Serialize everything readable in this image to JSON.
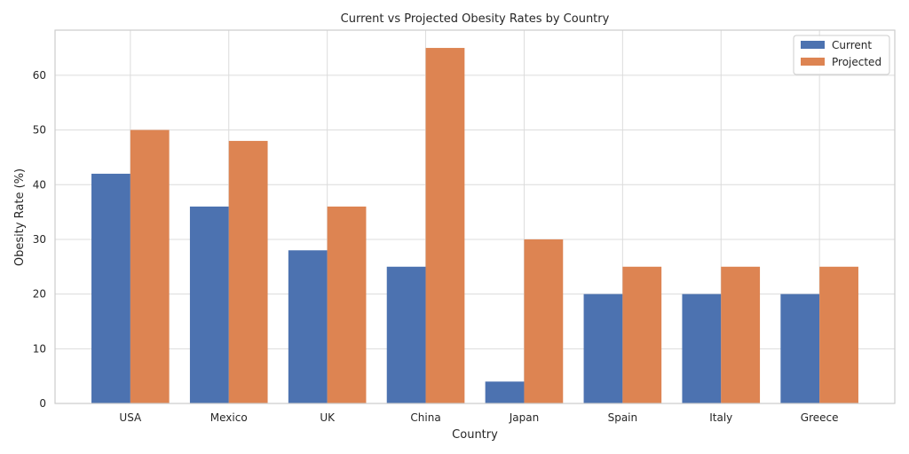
{
  "colors": {
    "current": "#4c72b0",
    "projected": "#dd8452",
    "grid": "#dcdcdc",
    "axis": "#cccccc"
  },
  "chart_data": {
    "type": "bar",
    "title": "Current vs Projected Obesity Rates by Country",
    "xlabel": "Country",
    "ylabel": "Obesity Rate (%)",
    "categories": [
      "USA",
      "Mexico",
      "UK",
      "China",
      "Japan",
      "Spain",
      "Italy",
      "Greece"
    ],
    "series": [
      {
        "name": "Current",
        "values": [
          42,
          36,
          28,
          25,
          4,
          20,
          20,
          20
        ]
      },
      {
        "name": "Projected",
        "values": [
          50,
          48,
          36,
          65,
          30,
          25,
          25,
          25
        ]
      }
    ],
    "ylim": [
      0,
      68.25
    ],
    "yticks": [
      0,
      10,
      20,
      30,
      40,
      50,
      60
    ],
    "grid": true,
    "legend": "top-right"
  }
}
